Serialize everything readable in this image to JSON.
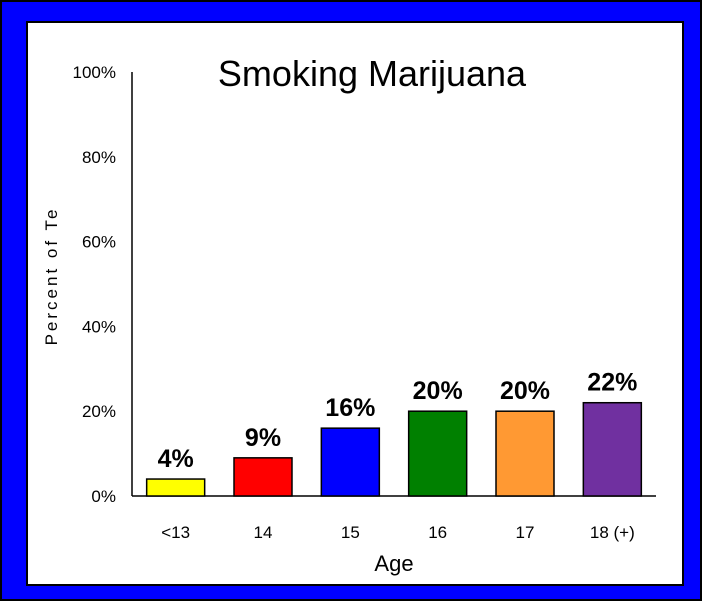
{
  "chart_data": {
    "type": "bar",
    "title": "Smoking Marijuana",
    "xlabel": "Age",
    "ylabel": "Percent of Te",
    "categories": [
      "<13",
      "14",
      "15",
      "16",
      "17",
      "18 (+)"
    ],
    "values": [
      4,
      9,
      16,
      20,
      20,
      22
    ],
    "data_labels": [
      "4%",
      "9%",
      "16%",
      "20%",
      "20%",
      "22%"
    ],
    "colors": [
      "#FFFF00",
      "#FF0000",
      "#0000FF",
      "#008000",
      "#FF9933",
      "#7030A0"
    ],
    "ylim": [
      0,
      100
    ],
    "yticks": [
      0,
      20,
      40,
      60,
      80,
      100
    ],
    "ytick_labels": [
      "0%",
      "20%",
      "40%",
      "60%",
      "80%",
      "100%"
    ],
    "grid": false,
    "legend": "none"
  }
}
